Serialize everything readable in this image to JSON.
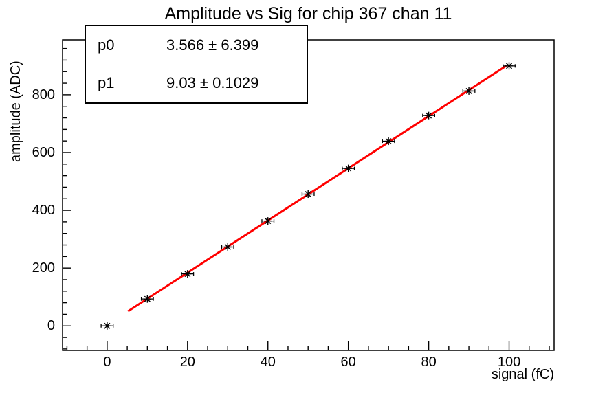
{
  "title": "Amplitude vs Sig for chip 367 chan 11",
  "stats_box": {
    "rows": [
      {
        "name": "p0",
        "value": "3.566 ± 6.399"
      },
      {
        "name": "p1",
        "value": "9.03 ± 0.1029"
      }
    ]
  },
  "chart_data": {
    "type": "scatter",
    "title": "Amplitude vs Sig for chip 367 chan 11",
    "xlabel": "signal (fC)",
    "ylabel": "amplitude (ADC)",
    "x": [
      0,
      10,
      20,
      30,
      40,
      50,
      60,
      70,
      80,
      90,
      100
    ],
    "y": [
      0,
      93,
      180,
      273,
      363,
      456,
      545,
      639,
      728,
      813,
      900
    ],
    "x_error": 1.5,
    "marker": "asterisk",
    "marker_color": "#000000",
    "fit_line": {
      "type": "linear",
      "p0": 3.566,
      "p0_err": 6.399,
      "p1": 9.03,
      "p1_err": 0.1029,
      "x_range": [
        5.2,
        99.3
      ],
      "color": "#ff0000"
    },
    "xlim": [
      -11.1,
      111.2
    ],
    "ylim": [
      -85,
      990
    ],
    "xticks": [
      0,
      20,
      40,
      60,
      80,
      100
    ],
    "yticks": [
      0,
      200,
      400,
      600,
      800
    ],
    "x_minor_step": 5,
    "y_minor_step": 40,
    "grid": false,
    "legend": false,
    "axis_color": "#000000",
    "background_color": "#ffffff"
  }
}
